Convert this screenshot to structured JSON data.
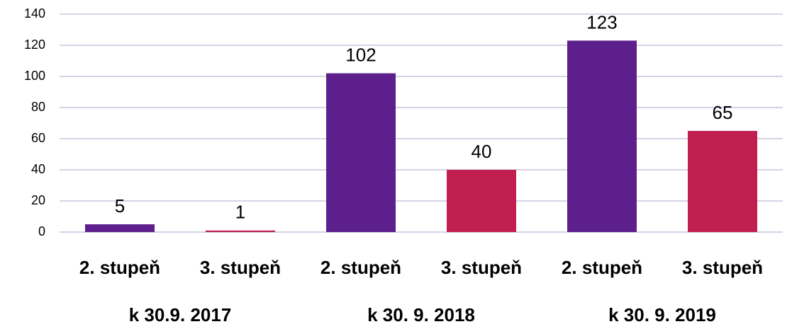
{
  "chart_data": {
    "type": "bar",
    "categories": [
      "2. stupeň",
      "3. stupeň",
      "2. stupeň",
      "3. stupeň",
      "2. stupeň",
      "3. stupeň"
    ],
    "groups": [
      "k 30.9. 2017",
      "k 30. 9. 2018",
      "k 30. 9. 2019"
    ],
    "values": [
      5,
      1,
      102,
      40,
      123,
      65
    ],
    "colors": [
      "#5c1f8b",
      "#c11f4f",
      "#5c1f8b",
      "#c11f4f",
      "#5c1f8b",
      "#c11f4f"
    ],
    "ylim": [
      0,
      140
    ],
    "yticks": [
      0,
      20,
      40,
      60,
      80,
      100,
      120,
      140
    ],
    "grid": true
  }
}
